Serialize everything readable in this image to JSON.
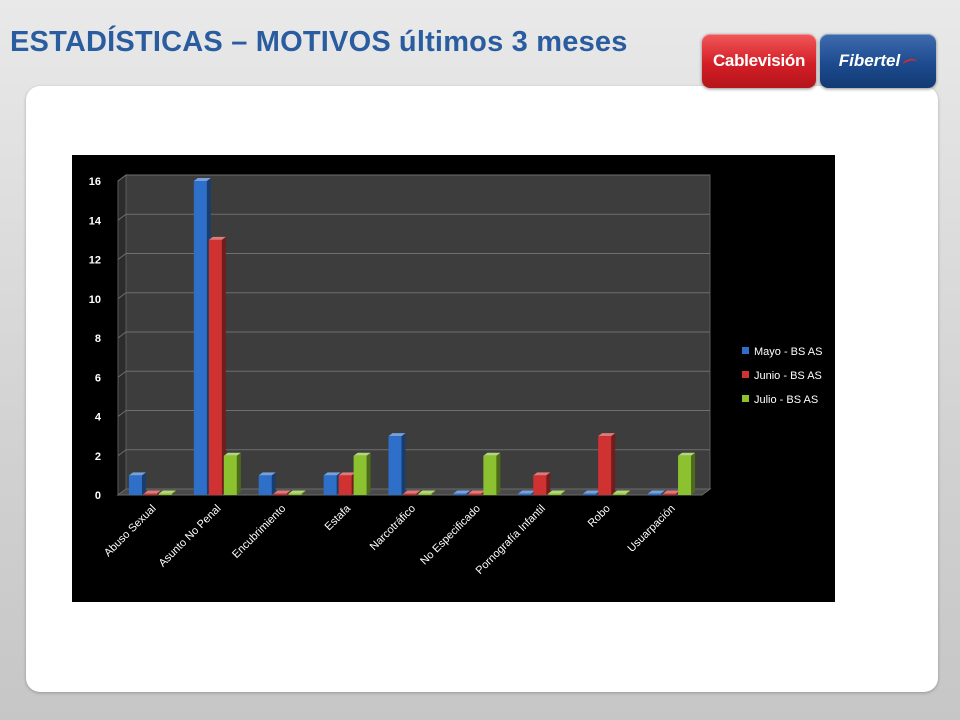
{
  "slide": {
    "title": "ESTADÍSTICAS – MOTIVOS",
    "subtitle": "últimos 3 meses"
  },
  "logos": {
    "left": "Cablevisión",
    "right": "Fibertel"
  },
  "colors": {
    "title": "#2a5ca0",
    "chart_background": "#000000",
    "plot_area": "#3a3a3a"
  },
  "chart_data": {
    "type": "bar",
    "title": "",
    "xlabel": "",
    "ylabel": "",
    "ylim": [
      0,
      16
    ],
    "yticks": [
      0,
      2,
      4,
      6,
      8,
      10,
      12,
      14,
      16
    ],
    "grid": true,
    "legend_position": "right",
    "categories": [
      "Abuso Sexual",
      "Asunto No Penal",
      "Encubrimiento",
      "Estafa",
      "Narcotráfico",
      "No Especificado",
      "Pornografía Infantil",
      "Robo",
      "Usuarpación"
    ],
    "series": [
      {
        "name": "Mayo - BS AS",
        "color": "#2d6fc9",
        "values": [
          1,
          16,
          1,
          1,
          3,
          0,
          0,
          0,
          0
        ]
      },
      {
        "name": "Junio - BS AS",
        "color": "#d03232",
        "values": [
          0,
          13,
          0,
          1,
          0,
          0,
          1,
          3,
          0
        ]
      },
      {
        "name": "Julio - BS AS",
        "color": "#8cc22f",
        "values": [
          0,
          2,
          0,
          2,
          0,
          2,
          0,
          0,
          2
        ]
      }
    ]
  }
}
